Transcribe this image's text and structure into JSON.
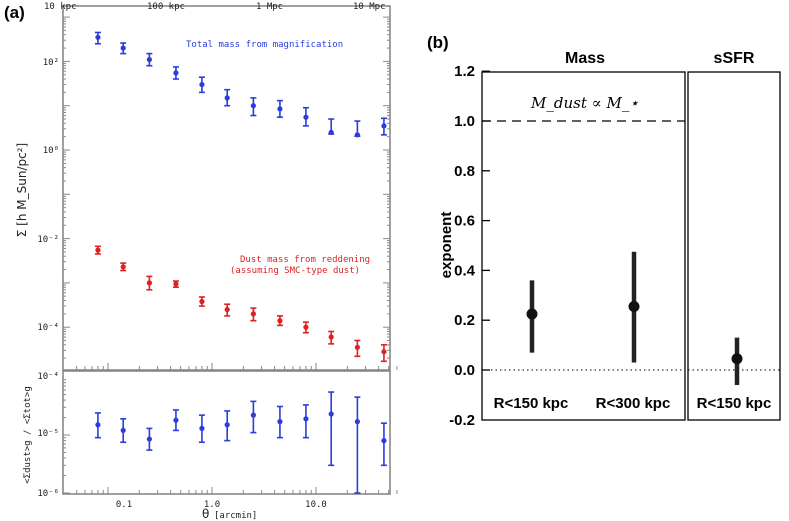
{
  "panel_a": {
    "label": "(a)",
    "top_axis_ticks": [
      "10 kpc",
      "100 kpc",
      "1 Mpc",
      "10 Mpc"
    ],
    "x_axis_label_prefix": "θ",
    "x_axis_label_unit": "[arcmin]",
    "x_tick_labels": [
      "0.1",
      "1.0",
      "10.0"
    ],
    "upper_y_label": "Σ [h M_Sun/pc²]",
    "upper_y_ticks": [
      "10²",
      "10⁰",
      "10⁻²",
      "10⁻⁴"
    ],
    "lower_y_label": "<Σdust>g / <Σtot>g",
    "lower_y_ticks": [
      "10⁻⁴",
      "10⁻⁵",
      "10⁻⁶"
    ],
    "blue_annotation": "Total mass from magnification",
    "red_annotation_line1": "Dust mass from reddening",
    "red_annotation_line2": "(assuming SMC-type dust)",
    "colors": {
      "total": "#2a3be0",
      "dust": "#e02020",
      "ratio": "#2a3be0"
    }
  },
  "panel_b": {
    "label": "(b)",
    "subpanel_titles": [
      "Mass",
      "sSFR"
    ],
    "y_axis_label": "exponent",
    "y_tick_labels": [
      "1.2",
      "1.0",
      "0.8",
      "0.6",
      "0.4",
      "0.2",
      "0.0",
      "-0.2"
    ],
    "category_labels": [
      "R<150 kpc",
      "R<300 kpc",
      "R<150 kpc"
    ],
    "reference_line_annotation": "M_dust ∝ M_⋆"
  },
  "chart_data": [
    {
      "type": "scatter",
      "title": "",
      "xlabel": "θ [arcmin]",
      "ylabel": "Σ [h M_Sun/pc²]",
      "x_scale": "log",
      "y_scale": "log",
      "xlim": [
        0.05,
        60
      ],
      "ylim": [
        1e-05,
        3000
      ],
      "secondary_x_ticks": [
        "10 kpc",
        "100 kpc",
        "1 Mpc",
        "10 Mpc"
      ],
      "series": [
        {
          "name": "Total mass from magnification",
          "x": [
            0.08,
            0.14,
            0.25,
            0.45,
            0.8,
            1.4,
            2.5,
            4.5,
            8.0,
            14,
            25,
            45
          ],
          "y": [
            350,
            200,
            110,
            55,
            30,
            15,
            10,
            8.5,
            5.5,
            2.5,
            2.2,
            3.5
          ],
          "err_lo": [
            250,
            150,
            80,
            40,
            20,
            10,
            6,
            5.5,
            3.5,
            2.3,
            2.05,
            2.2
          ],
          "err_hi": [
            450,
            260,
            150,
            75,
            44,
            23,
            15,
            13,
            9,
            5,
            4.5,
            5.2
          ]
        },
        {
          "name": "Dust mass from reddening (assuming SMC-type dust)",
          "x": [
            0.08,
            0.14,
            0.25,
            0.45,
            0.8,
            1.4,
            2.5,
            4.5,
            8.0,
            14,
            25,
            45
          ],
          "y": [
            0.0055,
            0.0023,
            0.001,
            0.00095,
            0.00038,
            0.00025,
            0.0002,
            0.00014,
            0.0001,
            6e-05,
            3.5e-05,
            2.8e-05
          ],
          "err_lo": [
            0.0045,
            0.0019,
            0.0007,
            0.0008,
            0.0003,
            0.00018,
            0.00014,
            0.00011,
            7.5e-05,
            4.2e-05,
            2.2e-05,
            1.7e-05
          ],
          "err_hi": [
            0.0067,
            0.0028,
            0.0014,
            0.0011,
            0.00048,
            0.00033,
            0.00027,
            0.00018,
            0.00013,
            8e-05,
            5e-05,
            4e-05
          ]
        }
      ]
    },
    {
      "type": "scatter",
      "title": "",
      "xlabel": "θ [arcmin]",
      "ylabel": "<Σdust>g / <Σtot>g",
      "x_scale": "log",
      "y_scale": "log",
      "xlim": [
        0.05,
        60
      ],
      "ylim": [
        1e-06,
        0.0001
      ],
      "series": [
        {
          "name": "",
          "x": [
            0.08,
            0.14,
            0.25,
            0.45,
            0.8,
            1.4,
            2.5,
            4.5,
            8.0,
            14,
            25,
            45
          ],
          "y": [
            1.5e-05,
            1.2e-05,
            8.5e-06,
            1.8e-05,
            1.3e-05,
            1.5e-05,
            2.2e-05,
            1.7e-05,
            1.9e-05,
            2.3e-05,
            1.7e-05,
            8e-06
          ],
          "err_lo": [
            9e-06,
            7.5e-06,
            5.5e-06,
            1.2e-05,
            7.5e-06,
            8e-06,
            1.1e-05,
            9e-06,
            9e-06,
            3e-06,
            1e-06,
            3e-06
          ],
          "err_hi": [
            2.4e-05,
            1.9e-05,
            1.3e-05,
            2.7e-05,
            2.2e-05,
            2.6e-05,
            3.8e-05,
            3.1e-05,
            3.3e-05,
            5.5e-05,
            4.5e-05,
            1.6e-05
          ]
        }
      ]
    },
    {
      "type": "scatter",
      "title": "",
      "xlabel": "",
      "ylabel": "exponent",
      "ylim": [
        -0.2,
        1.3
      ],
      "subpanels": [
        "Mass",
        "sSFR"
      ],
      "categories": [
        "R<150 kpc",
        "R<300 kpc",
        "R<150 kpc"
      ],
      "category_subpanel": [
        0,
        0,
        1
      ],
      "values": [
        0.225,
        0.255,
        0.045
      ],
      "err_lo": [
        0.07,
        0.03,
        -0.06
      ],
      "err_hi": [
        0.36,
        0.475,
        0.13
      ],
      "reference_lines": [
        {
          "y": 1.0,
          "style": "dashed",
          "label": "M_dust ∝ M_⋆"
        },
        {
          "y": 0.0,
          "style": "dotted"
        }
      ]
    }
  ]
}
